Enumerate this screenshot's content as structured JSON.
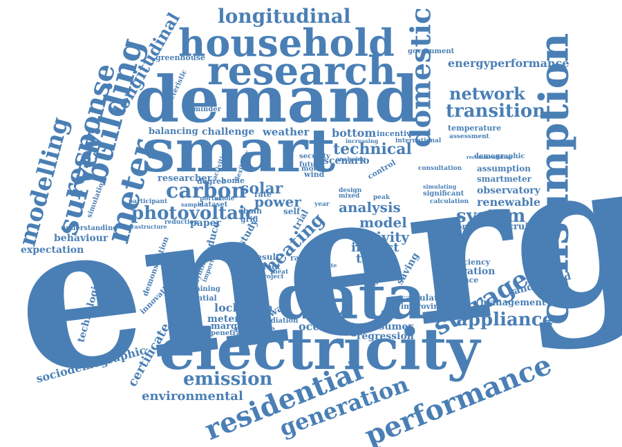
{
  "word_color": "#4a7fb5",
  "background_color": "#ffffff",
  "words": [
    "energy",
    "consumption",
    "electricity",
    "demand",
    "smart",
    "data",
    "household",
    "research",
    "domestic",
    "building",
    "response",
    "survey",
    "meter",
    "modelling",
    "performance",
    "residential",
    "generation",
    "storage",
    "appliance",
    "carbon",
    "emission",
    "longitudinal",
    "photovoltaic",
    "system",
    "network",
    "transition",
    "technical",
    "analysis",
    "model",
    "activity",
    "heating",
    "solar",
    "power",
    "time",
    "impact",
    "bottom",
    "scenario",
    "thermal",
    "environmental",
    "sociodemographic",
    "certificate",
    "behaviour",
    "expectation",
    "technologies",
    "lockdown",
    "metering",
    "occupant",
    "prosumer",
    "regression",
    "renewable",
    "observatory",
    "smartmeter",
    "assumption",
    "recruitment",
    "kingdom",
    "integration",
    "efficiency",
    "difference",
    "randomized",
    "management",
    "calculator",
    "improving",
    "energyperformance",
    "government",
    "greenhouse",
    "challenge",
    "weather",
    "balancing",
    "researcher",
    "paper",
    "reduce",
    "temperature",
    "incentive",
    "control",
    "security",
    "future",
    "more",
    "wind",
    "rate",
    "study",
    "result",
    "effect",
    "rating",
    "greater",
    "attitude",
    "pathway",
    "estimate",
    "radiation",
    "marginal",
    "penetration",
    "explaining",
    "potential",
    "innovation",
    "demonstration",
    "understanding",
    "simulation",
    "characteristic",
    "reminder",
    "degree",
    "home",
    "dataset",
    "participant",
    "infrastructure",
    "reduction",
    "grid",
    "chain",
    "self",
    "trial",
    "service",
    "saving",
    "assessment",
    "demographic",
    "consultation",
    "significant",
    "calculation",
    "flexibility",
    "activities",
    "whole",
    "portal",
    "sample",
    "international",
    "increasing",
    "analysing",
    "climate",
    "project",
    "synthetic",
    "important",
    "heat",
    "peak",
    "year",
    "mixed",
    "design",
    "recommendation",
    "household",
    "simulating",
    "tariff"
  ]
}
